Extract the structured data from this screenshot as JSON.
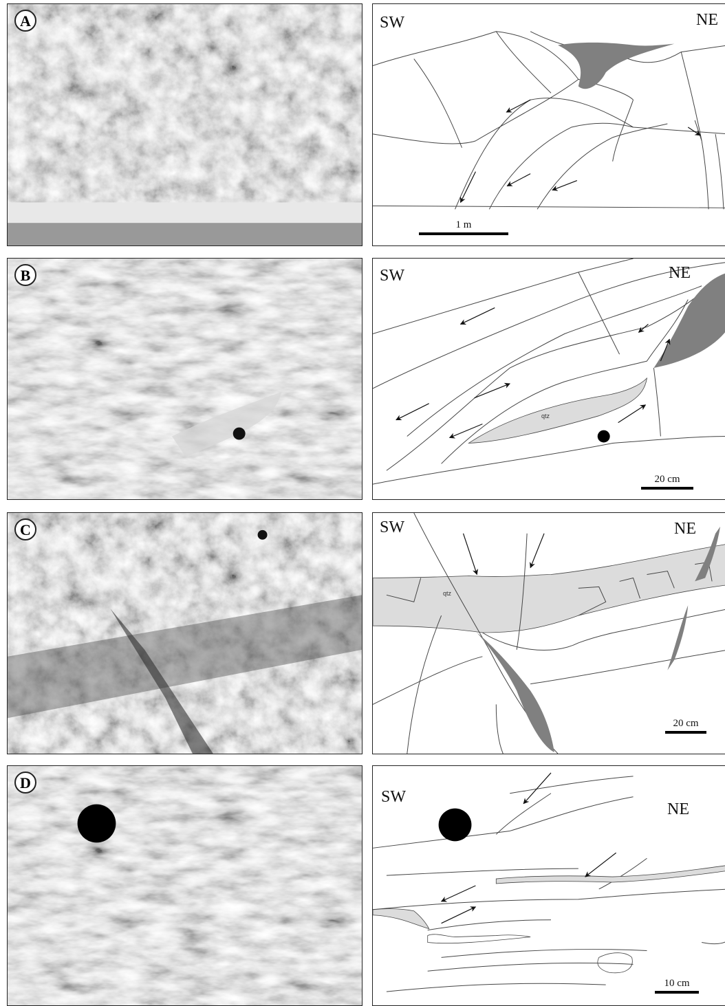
{
  "panels": [
    {
      "letter": "A",
      "left_dir": "SW",
      "right_dir": "NE",
      "scale": "1 m"
    },
    {
      "letter": "B",
      "left_dir": "SW",
      "right_dir": "NE",
      "scale": "20 cm",
      "label": "qtz"
    },
    {
      "letter": "C",
      "left_dir": "SW",
      "right_dir": "NE",
      "scale": "20 cm",
      "label": "qtz"
    },
    {
      "letter": "D",
      "left_dir": "SW",
      "right_dir": "NE",
      "scale": "10 cm"
    }
  ],
  "colors": {
    "dark_fill": "#808080",
    "light_fill": "#dcdcdc",
    "line": "#444444"
  }
}
